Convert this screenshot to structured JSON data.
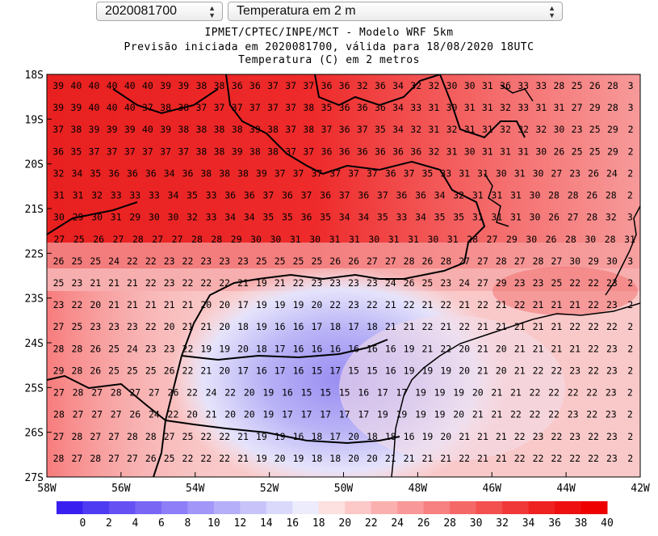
{
  "controls": {
    "run_select": {
      "value": "2020081700"
    },
    "variable_select": {
      "value": "Temperatura em 2 m"
    }
  },
  "titles": {
    "line1": "IPMET/CPTEC/INPE/MCT - Modelo WRF 5km",
    "line2": "Previsão iniciada em 2020081700, válida para 18/08/2020 18UTC",
    "line3": "Temperatura (C) em 2 metros"
  },
  "map": {
    "lon_range": [
      -58,
      -42
    ],
    "lat_range": [
      -27,
      -18
    ],
    "lon_ticks": [
      "58W",
      "56W",
      "54W",
      "52W",
      "50W",
      "48W",
      "46W",
      "44W",
      "42W"
    ],
    "lat_ticks": [
      "18S",
      "19S",
      "20S",
      "21S",
      "22S",
      "23S",
      "24S",
      "25S",
      "26S",
      "27S"
    ],
    "grid_rows": [
      "39 40 40 40 40 40 39 39 38 38 36 36 37 37 37 36 36 32 36 34 32 32 30 30 31 36 33 33 28 25 26 28 3",
      "39 39 40 40 40 37 38 38 37 37 37 37 37 37 38 35 36 36 36 34 33 31 30 31 31 32 33 31 31 27 29 28 3",
      "37 38 39 39 39 40 39 38 38 38 38 39 38 37 38 37 36 37 35 34 32 31 32 31 31 32 32 32 30 23 25 29 2",
      "36 35 37 37 37 37 37 37 38 38 39 38 38 37 37 36 36 36 36 36 36 32 31 30 31 31 31 30 26 25 25 29 2",
      "32 34 35 36 36 36 34 36 38 38 38 39 37 37 37 37 37 37 36 37 35 33 31 31 30 31 30 27 23 26 24 2",
      "31 31 32 33 33 33 34 35 33 36 36 37 36 37 36 37 36 37 36 36 34 32 31 31 31 30 28 28 26 28 2",
      "30 29 30 31 29 30 30 32 33 34 34 35 35 36 35 34 34 35 33 34 35 35 31 31 31 30 26 27 28 32 3",
      "27 25 26 27 28 27 27 28 28 29 30 30 31 30 31 31 30 31 31 30 31 28 27 29 30 26 28 30 28 31",
      "26 25 25 24 22 22 23 22 23 23 23 25 25 25 25 26 26 27 27 28 26 28 27 27 28 27 28 27 30 29 30 3",
      "25 23 21 21 21 22 23 22 22 22 21 19 21 22 23 23 23 23 24 26 25 23 24 27 29 23 23 25 22 22 23 2",
      "23 22 20 21 21 21 21 21 20 20 17 19 19 19 20 22 23 22 21 22 21 22 21 22 21 22 21 21 21 22 23 2",
      "27 25 23 23 23 22 20 21 21 20 18 19 16 16 17 18 17 18 21 21 22 21 22 21 21 21 21 21 22 22 22 2",
      "28 28 26 25 24 23 23 22 19 19 20 18 17 16 16 16 16 16 16 19 21 22 20 21 20 21 21 21 21 22 23 2",
      "29 28 26 25 25 25 26 22 21 20 17 16 17 16 15 17 15 15 16 19 19 19 20 21 20 21 22 22 23 22 23 2",
      "27 28 27 28 27 27 26 22 24 22 20 19 16 15 15 15 16 17 17 19 19 19 20 21 21 22 22 22 22 23 2",
      "28 27 27 27 26 24 22 20 21 20 20 19 17 17 17 17 17 19 19 19 19 20 21 21 22 22 22 23 22 23 2",
      "27 28 27 27 28 28 27 25 22 22 21 19 19 16 18 17 20 18 18 16 19 20 21 21 21 22 23 22 23 22 23 2",
      "28 27 28 27 27 26 25 22 22 22 21 19 20 19 18 18 20 20 21 21 21 21 22 21 21 22 22 22 22 22 23 2"
    ],
    "colorbar_labels": [
      "0",
      "2",
      "4",
      "6",
      "8",
      "10",
      "12",
      "14",
      "16",
      "18",
      "20",
      "22",
      "24",
      "26",
      "28",
      "30",
      "32",
      "34",
      "36",
      "38",
      "40"
    ],
    "colorbar_colors": [
      "#3a20f0",
      "#4f3cf2",
      "#6550f4",
      "#7a66f5",
      "#8e7ef7",
      "#a296f8",
      "#b5aef9",
      "#c8c4fa",
      "#dad8fb",
      "#ececfc",
      "#fde0e0",
      "#fcc8c8",
      "#fbb0b0",
      "#f99898",
      "#f78080",
      "#f56868",
      "#f35050",
      "#f13838",
      "#ef2222",
      "#ee1010",
      "#ee0000"
    ]
  }
}
